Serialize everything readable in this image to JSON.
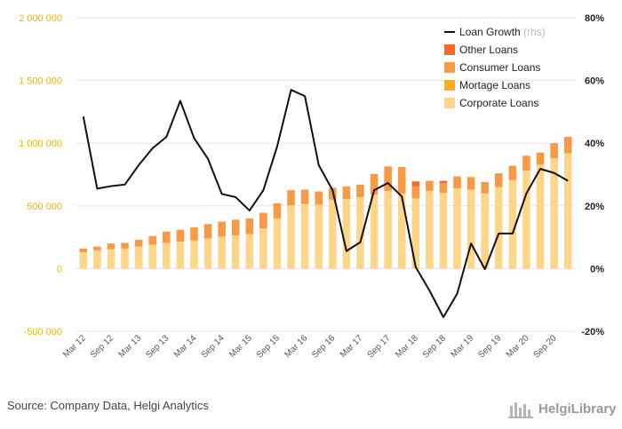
{
  "chart_data": {
    "type": "bar",
    "categories": [
      "Mar 12",
      "Jun 12",
      "Sep 12",
      "Dec 12",
      "Mar 13",
      "Jun 13",
      "Sep 13",
      "Dec 13",
      "Mar 14",
      "Jun 14",
      "Sep 14",
      "Dec 14",
      "Mar 15",
      "Jun 15",
      "Sep 15",
      "Dec 15",
      "Mar 16",
      "Jun 16",
      "Sep 16",
      "Dec 16",
      "Mar 17",
      "Jun 17",
      "Sep 17",
      "Dec 17",
      "Mar 18",
      "Jun 18",
      "Sep 18",
      "Dec 18",
      "Mar 19",
      "Jun 19",
      "Sep 19",
      "Dec 19",
      "Mar 20",
      "Jun 20",
      "Sep 20",
      "Dec 20"
    ],
    "x_tick_labels": [
      "Mar 12",
      "Sep 12",
      "Mar 13",
      "Sep 13",
      "Mar 14",
      "Sep 14",
      "Mar 15",
      "Sep 15",
      "Mar 16",
      "Sep 16",
      "Mar 17",
      "Sep 17",
      "Mar 18",
      "Sep 18",
      "Mar 19",
      "Sep 19",
      "Mar 20",
      "Sep 20"
    ],
    "series": [
      {
        "name": "Corporate Loans",
        "color": "#fdd68a",
        "axis": "left",
        "stack": true,
        "values": [
          130000,
          145000,
          155000,
          160000,
          175000,
          190000,
          205000,
          215000,
          225000,
          240000,
          255000,
          265000,
          275000,
          320000,
          400000,
          505000,
          515000,
          510000,
          550000,
          555000,
          570000,
          590000,
          620000,
          600000,
          560000,
          620000,
          605000,
          640000,
          630000,
          600000,
          650000,
          705000,
          780000,
          830000,
          880000,
          920000
        ]
      },
      {
        "name": "Mortage Loans",
        "color": "#f5b120",
        "axis": "left",
        "stack": true,
        "values": [
          0,
          0,
          0,
          0,
          0,
          0,
          0,
          0,
          0,
          0,
          0,
          0,
          0,
          0,
          0,
          0,
          0,
          0,
          0,
          0,
          0,
          0,
          0,
          0,
          0,
          0,
          0,
          0,
          0,
          0,
          0,
          0,
          0,
          0,
          0,
          0
        ]
      },
      {
        "name": "Consumer Loans",
        "color": "#f79a46",
        "axis": "left",
        "stack": true,
        "values": [
          30000,
          30000,
          45000,
          45000,
          55000,
          70000,
          90000,
          95000,
          105000,
          115000,
          120000,
          125000,
          125000,
          125000,
          120000,
          120000,
          115000,
          105000,
          95000,
          100000,
          100000,
          165000,
          195000,
          210000,
          95000,
          80000,
          75000,
          95000,
          100000,
          90000,
          110000,
          115000,
          120000,
          95000,
          120000,
          130000
        ]
      },
      {
        "name": "Other Loans",
        "color": "#f26b2a",
        "axis": "left",
        "stack": true,
        "values": [
          0,
          0,
          0,
          0,
          0,
          0,
          0,
          0,
          0,
          0,
          0,
          0,
          0,
          0,
          0,
          0,
          0,
          0,
          0,
          0,
          0,
          0,
          0,
          0,
          40000,
          0,
          20000,
          0,
          0,
          0,
          0,
          0,
          0,
          0,
          0,
          0
        ]
      },
      {
        "name": "Loan Growth",
        "rhs_label": "(rhs)",
        "color": "#111111",
        "type": "line",
        "axis": "right",
        "values": [
          48.5,
          25.5,
          26.3,
          26.8,
          33.0,
          38.4,
          42.0,
          53.5,
          41.6,
          35.0,
          23.8,
          22.8,
          18.5,
          25.0,
          39.0,
          57.0,
          55.0,
          33.0,
          25.0,
          5.6,
          8.4,
          25.0,
          27.3,
          23.0,
          0.5,
          -7.0,
          -15.5,
          -8.0,
          8.0,
          -0.2,
          11.2,
          11.2,
          24.0,
          31.8,
          30.5,
          28.0
        ]
      }
    ],
    "y_left": {
      "min": -500000,
      "max": 2000000,
      "ticks": [
        2000000,
        1500000,
        1000000,
        500000,
        0,
        -500000
      ],
      "tick_labels": [
        "2 000 000",
        "1 500 000",
        "1 000 000",
        "500 000",
        "0",
        "-500 000"
      ]
    },
    "y_right": {
      "min": -20,
      "max": 80,
      "ticks": [
        80,
        60,
        40,
        20,
        0,
        -20
      ],
      "tick_labels": [
        "80%",
        "60%",
        "40%",
        "20%",
        "0%",
        "-20%"
      ]
    },
    "legend_position": "top-right",
    "grid": "horizontal"
  },
  "footer": {
    "source": "Source: Company Data, Helgi Analytics",
    "brand": "HelgiLibrary"
  }
}
